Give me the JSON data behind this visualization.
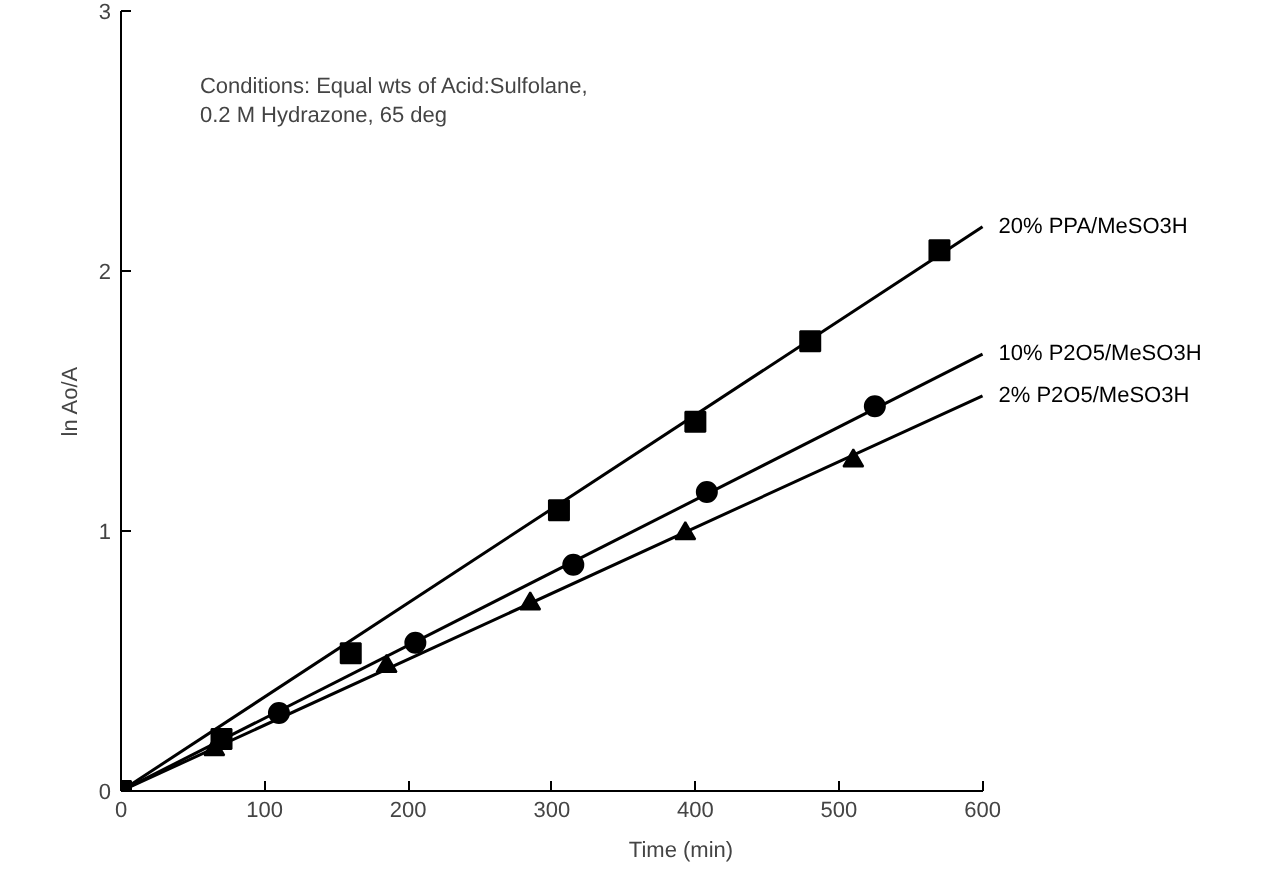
{
  "chart_data": {
    "type": "scatter",
    "xlabel": "Time (min)",
    "ylabel": "ln Ao/A",
    "annotations": [
      "Conditions: Equal wts of Acid:Sulfolane,\n0.2 M Hydrazone, 65 deg"
    ],
    "xlim": [
      0,
      600
    ],
    "ylim": [
      0,
      3
    ],
    "xticks": [
      0,
      100,
      200,
      300,
      400,
      500,
      600
    ],
    "yticks": [
      0,
      1,
      2,
      3
    ],
    "grid": false,
    "legend": false,
    "series": [
      {
        "marker": "square",
        "color": "#000000",
        "x": [
          0,
          70,
          160,
          305,
          400,
          480,
          570
        ],
        "values": [
          0,
          0.2,
          0.53,
          1.08,
          1.42,
          1.73,
          2.08
        ]
      },
      {
        "marker": "circle",
        "color": "#000000",
        "x": [
          110,
          205,
          315,
          408,
          525
        ],
        "values": [
          0.3,
          0.57,
          0.87,
          1.15,
          1.48
        ]
      },
      {
        "marker": "triangle",
        "color": "#000000",
        "x": [
          65,
          185,
          285,
          393,
          510
        ],
        "values": [
          0.16,
          0.48,
          0.72,
          0.99,
          1.27
        ]
      },
      {
        "type": "line",
        "marker": "none",
        "name": "20% PPA/MeSO3H",
        "color": "#000000",
        "x": [
          0,
          600
        ],
        "values": [
          0,
          2.17
        ]
      },
      {
        "type": "line",
        "marker": "none",
        "name": "10% P2O5/MeSO3H",
        "color": "#000000",
        "x": [
          0,
          600
        ],
        "values": [
          0,
          1.68
        ]
      },
      {
        "type": "line",
        "marker": "none",
        "name": "2% P2O5/MeSO3H",
        "color": "#000000",
        "x": [
          0,
          600
        ],
        "values": [
          0,
          1.52
        ]
      }
    ]
  }
}
